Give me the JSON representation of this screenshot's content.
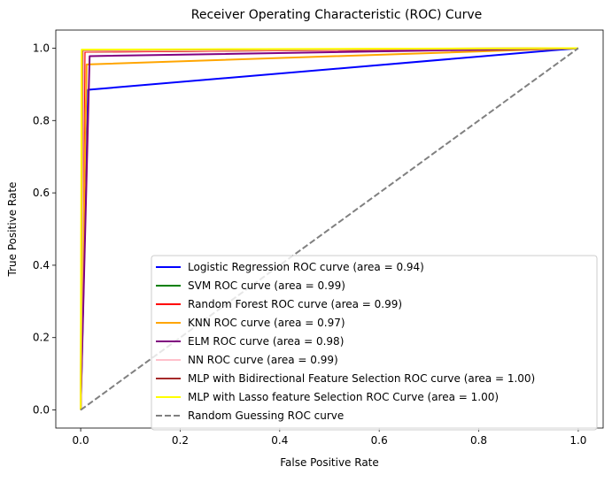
{
  "chart_data": {
    "type": "line",
    "title": "Receiver Operating Characteristic (ROC) Curve",
    "xlabel": "False Positive Rate",
    "ylabel": "True Positive Rate",
    "xlim": [
      -0.05,
      1.05
    ],
    "ylim": [
      -0.05,
      1.05
    ],
    "xticks": [
      "0.0",
      "0.2",
      "0.4",
      "0.6",
      "0.8",
      "1.0"
    ],
    "yticks": [
      "0.0",
      "0.2",
      "0.4",
      "0.6",
      "0.8",
      "1.0"
    ],
    "grid": false,
    "legend_position": "lower-right",
    "series": [
      {
        "name": "Logistic Regression ROC curve (area = 0.94)",
        "color": "#0000ff",
        "dash": "solid",
        "x": [
          0,
          0.015,
          1
        ],
        "y": [
          0,
          0.885,
          1
        ]
      },
      {
        "name": "SVM ROC curve (area = 0.99)",
        "color": "#008000",
        "dash": "solid",
        "x": [
          0,
          0.005,
          1
        ],
        "y": [
          0,
          0.99,
          1
        ]
      },
      {
        "name": "Random Forest ROC curve (area = 0.99)",
        "color": "#ff0000",
        "dash": "solid",
        "x": [
          0,
          0.008,
          1
        ],
        "y": [
          0,
          0.99,
          1
        ]
      },
      {
        "name": "KNN ROC curve (area = 0.97)",
        "color": "#ffa500",
        "dash": "solid",
        "x": [
          0,
          0.012,
          1
        ],
        "y": [
          0,
          0.955,
          1
        ]
      },
      {
        "name": "ELM ROC curve (area = 0.98)",
        "color": "#800080",
        "dash": "solid",
        "x": [
          0,
          0.018,
          1
        ],
        "y": [
          0,
          0.978,
          1
        ]
      },
      {
        "name": "NN ROC curve (area = 0.99)",
        "color": "#ffc0cb",
        "dash": "solid",
        "x": [
          0,
          0.006,
          1
        ],
        "y": [
          0,
          0.992,
          1
        ]
      },
      {
        "name": "MLP with Bidirectional Feature Selection ROC curve (area = 1.00)",
        "color": "#a52a2a",
        "dash": "solid",
        "x": [
          0,
          0.003,
          1
        ],
        "y": [
          0,
          0.995,
          1
        ]
      },
      {
        "name": "MLP with Lasso feature Selection ROC Curve (area = 1.00)",
        "color": "#ffff00",
        "dash": "solid",
        "x": [
          0,
          0.002,
          1
        ],
        "y": [
          0,
          0.996,
          1
        ]
      },
      {
        "name": "Random Guessing ROC curve",
        "color": "#808080",
        "dash": "dashed",
        "x": [
          0,
          1
        ],
        "y": [
          0,
          1
        ]
      }
    ]
  }
}
